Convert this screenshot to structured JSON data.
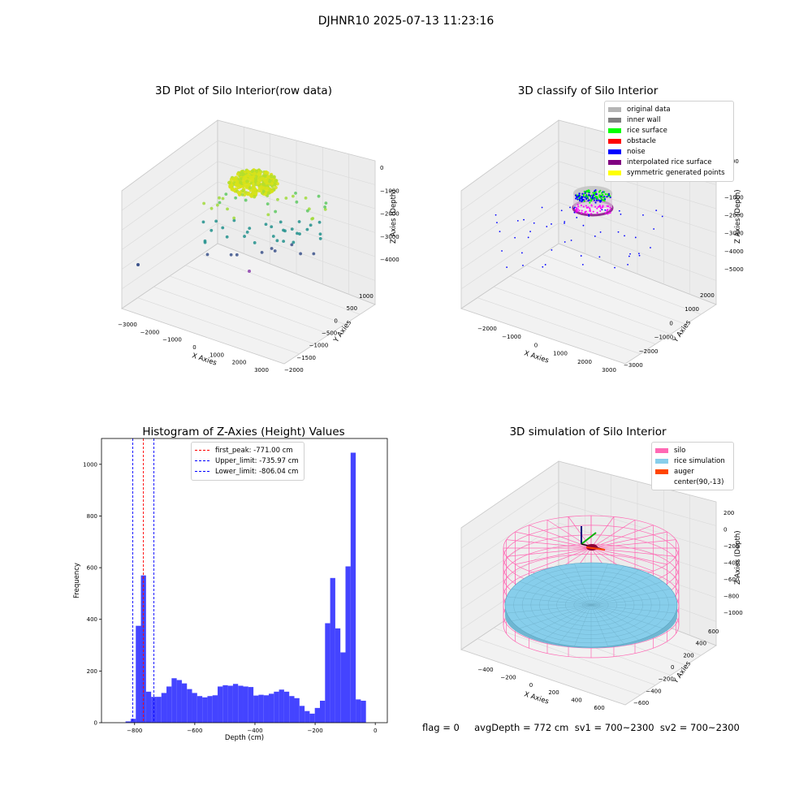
{
  "suptitle": "DJHNR10 2025-07-13 11:23:16",
  "status_line": "flag = 0     avgDepth = 772 cm  sv1 = 700~2300  sv2 = 700~2300",
  "colors": {
    "histogram_bar": "#4444ff",
    "first_peak_line": "#ff0000",
    "limit_line": "#0000ff",
    "silo_wire": "#ff69b4",
    "rice_simulation": "#87ceeb",
    "auger": "#ff4500",
    "scatter_colormap": [
      "#440154",
      "#3b528b",
      "#21918c",
      "#5ec962",
      "#fde725"
    ]
  },
  "chart_data": [
    {
      "type": "scatter",
      "title": "3D Plot of Silo Interior(row data)",
      "xlabel": "X Axies",
      "ylabel": "Y Axies",
      "zlabel": "Z Axies (Depth)",
      "xticks": [
        "−3000",
        "−2000",
        "−1000",
        "0",
        "1000",
        "2000",
        "3000"
      ],
      "yticks": [
        "1000",
        "500",
        "0",
        "−500",
        "−1000",
        "−1500",
        "−2000"
      ],
      "zticks": [
        "0",
        "−1000",
        "−2000",
        "−3000",
        "−4000"
      ],
      "grid": true,
      "note": "Dense yellow-green cluster near top of silo; sparse outlier points colored by depth (viridis)"
    },
    {
      "type": "scatter",
      "title": "3D classify of Silo Interior",
      "xlabel": "X Axies",
      "ylabel": "Y Axies",
      "zlabel": "Z Axies (Depth)",
      "xticks": [
        "−2000",
        "−1000",
        "0",
        "1000",
        "2000",
        "3000"
      ],
      "yticks": [
        "2000",
        "1000",
        "0",
        "−1000",
        "−2000",
        "−3000"
      ],
      "zticks": [
        "1000",
        "0",
        "−1000",
        "−2000",
        "−3000",
        "−4000",
        "−5000"
      ],
      "grid": true,
      "legend_position": "top-right",
      "legend": [
        {
          "label": "original data",
          "color": "#b4b4b4"
        },
        {
          "label": "inner wall",
          "color": "#808080"
        },
        {
          "label": "rice surface",
          "color": "#00ff00"
        },
        {
          "label": "obstacle",
          "color": "#ff0000"
        },
        {
          "label": "noise",
          "color": "#0000ff"
        },
        {
          "label": "interpolated rice surface",
          "color": "#800080"
        },
        {
          "label": "symmetric generated points",
          "color": "#ffff00"
        }
      ]
    },
    {
      "type": "bar",
      "title": "Histogram of Z-Axies (Height) Values",
      "xlabel": "Depth (cm)",
      "ylabel": "Frequency",
      "xlim": [
        -910,
        40
      ],
      "ylim": [
        0,
        1100
      ],
      "xticks": [
        "−800",
        "−600",
        "−400",
        "−200",
        "0"
      ],
      "xtick_values": [
        -800,
        -600,
        -400,
        -200,
        0
      ],
      "yticks": [
        "0",
        "200",
        "400",
        "600",
        "800",
        "1000"
      ],
      "ytick_values": [
        0,
        200,
        400,
        600,
        800,
        1000
      ],
      "bin_start": -830,
      "bin_width": 17,
      "values": [
        5,
        15,
        375,
        570,
        120,
        100,
        100,
        115,
        140,
        172,
        165,
        152,
        130,
        115,
        103,
        98,
        103,
        106,
        140,
        145,
        143,
        150,
        143,
        140,
        138,
        105,
        108,
        106,
        112,
        120,
        128,
        120,
        103,
        95,
        65,
        45,
        35,
        57,
        85,
        385,
        560,
        365,
        272,
        605,
        1045,
        90,
        85
      ],
      "vlines": [
        {
          "label": "first_peak: -771.00 cm",
          "x": -771.0,
          "color": "#ff0000"
        },
        {
          "label": "Upper_limit: -735.97 cm",
          "x": -735.97,
          "color": "#0000ff"
        },
        {
          "label": "Lower_limit: -806.04 cm",
          "x": -806.04,
          "color": "#0000ff"
        }
      ],
      "legend_position": "upper-center"
    },
    {
      "type": "scatter",
      "title": "3D simulation of Silo Interior",
      "xlabel": "X Axies",
      "ylabel": "Y Axies",
      "zlabel": "Z Axies (Depth)",
      "xticks": [
        "−400",
        "−200",
        "0",
        "200",
        "400",
        "600"
      ],
      "yticks": [
        "600",
        "400",
        "200",
        "0",
        "−200",
        "−400",
        "−600"
      ],
      "zticks": [
        "200",
        "0",
        "−200",
        "−400",
        "−600",
        "−800",
        "−1000"
      ],
      "grid": true,
      "legend_position": "top-right",
      "legend": [
        {
          "label": "silo",
          "color": "#ff69b4"
        },
        {
          "label": "rice simulation",
          "color": "#87ceeb"
        },
        {
          "label": "auger",
          "color": "#ff4500"
        },
        {
          "label": "center(90,-13)",
          "color": ""
        }
      ]
    }
  ]
}
